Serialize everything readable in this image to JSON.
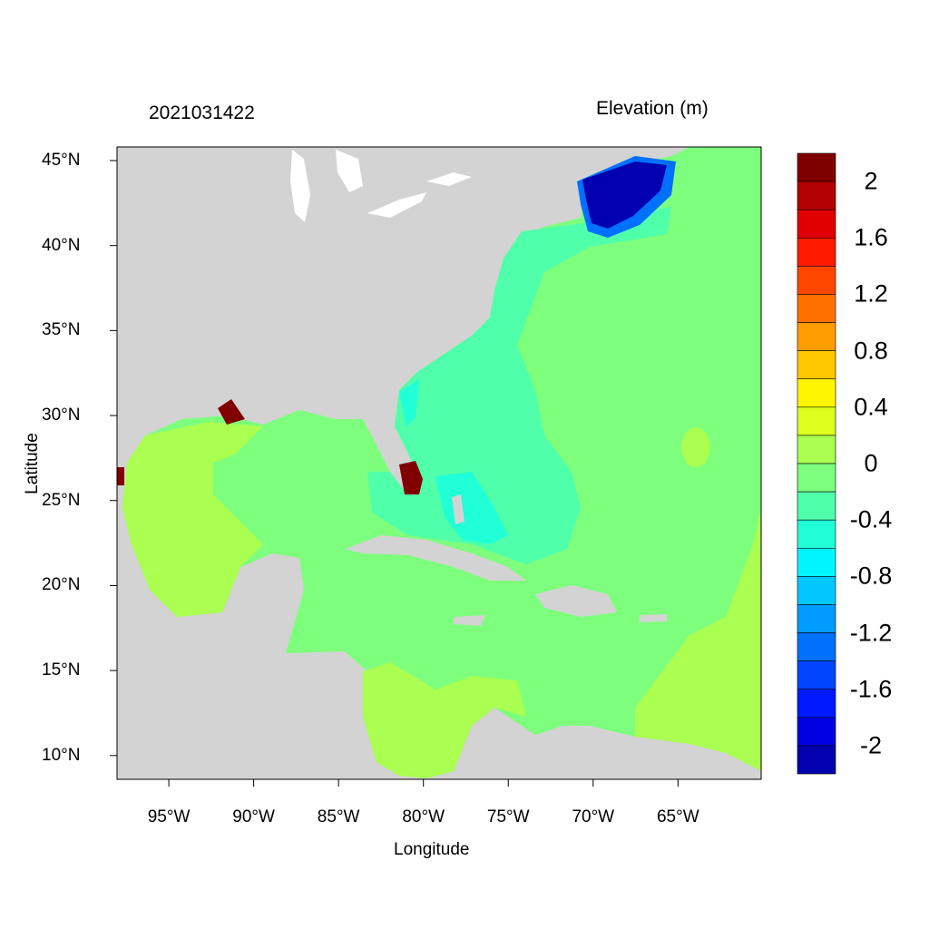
{
  "title_left": "2021031422",
  "title_right": "Elevation (m)",
  "xlabel": "Longitude",
  "ylabel": "Latitude",
  "x_ticks": [
    {
      "lon": -95,
      "label": "95°W"
    },
    {
      "lon": -90,
      "label": "90°W"
    },
    {
      "lon": -85,
      "label": "85°W"
    },
    {
      "lon": -80,
      "label": "80°W"
    },
    {
      "lon": -75,
      "label": "75°W"
    },
    {
      "lon": -70,
      "label": "70°W"
    },
    {
      "lon": -65,
      "label": "65°W"
    }
  ],
  "y_ticks": [
    {
      "lat": 45,
      "label": "45°N"
    },
    {
      "lat": 40,
      "label": "40°N"
    },
    {
      "lat": 35,
      "label": "35°N"
    },
    {
      "lat": 30,
      "label": "30°N"
    },
    {
      "lat": 25,
      "label": "25°N"
    },
    {
      "lat": 20,
      "label": "20°N"
    },
    {
      "lat": 15,
      "label": "15°N"
    },
    {
      "lat": 10,
      "label": "10°N"
    }
  ],
  "extent": {
    "lon": [
      -98.05,
      -60.1
    ],
    "lat": [
      8.6,
      45.8
    ]
  },
  "colorbar": {
    "colors": [
      "#800000",
      "#b40000",
      "#e00000",
      "#ff1a00",
      "#ff4600",
      "#ff7000",
      "#ff9c00",
      "#ffc800",
      "#fff500",
      "#dcff1e",
      "#aaff50",
      "#7dff7d",
      "#50ffaa",
      "#20ffd8",
      "#00f6ff",
      "#00c8ff",
      "#009cff",
      "#0070ff",
      "#0046ff",
      "#001aff",
      "#0000e0",
      "#0000b0"
    ],
    "boundaries": [
      2.0,
      1.8,
      1.6,
      1.4,
      1.2,
      1.0,
      0.8,
      0.6,
      0.4,
      0.2,
      0.0,
      -0.2,
      -0.4,
      -0.6,
      -0.8,
      -1.0,
      -1.2,
      -1.4,
      -1.6,
      -1.8,
      -2.0
    ],
    "labels": [
      {
        "value": 2,
        "label": "2"
      },
      {
        "value": 1.6,
        "label": "1.6"
      },
      {
        "value": 1.2,
        "label": "1.2"
      },
      {
        "value": 0.8,
        "label": "0.8"
      },
      {
        "value": 0.4,
        "label": "0.4"
      },
      {
        "value": 0,
        "label": "0"
      },
      {
        "value": -0.4,
        "label": "-0.4"
      },
      {
        "value": -0.8,
        "label": "-0.8"
      },
      {
        "value": -1.2,
        "label": "-1.2"
      },
      {
        "value": -1.6,
        "label": "-1.6"
      },
      {
        "value": -2,
        "label": "-2"
      }
    ]
  },
  "colors": {
    "land": "#d3d3d3",
    "lakes": "#ffffff",
    "open_ocean": "#7dff7d",
    "shelf": "#50ffaa",
    "gulf_west": "#aaff50",
    "gulf_of_maine": "#0000b0",
    "florida_coast": "#800000"
  }
}
